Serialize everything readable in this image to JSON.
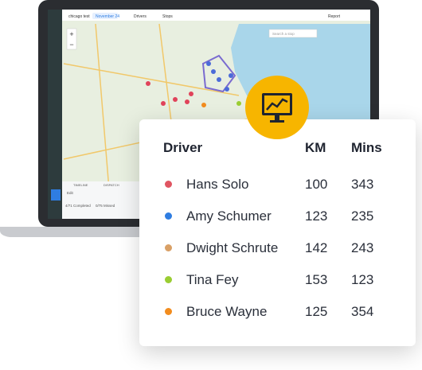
{
  "app": {
    "account": "chicago test",
    "date": "November 24",
    "drivers": "Drivers",
    "stops": "Stops",
    "report": "Report",
    "search": "Search a stop",
    "tabs": [
      "TIMELINE",
      "DISPATCH"
    ],
    "edit": "Edit",
    "status": [
      "4/71 Completed",
      "0/75 Missed"
    ]
  },
  "table": {
    "headers": [
      "Driver",
      "KM",
      "Mins"
    ],
    "rows": [
      {
        "name": "Hans Solo",
        "km": 100,
        "mins": 343,
        "color": "#e05562"
      },
      {
        "name": "Amy Schumer",
        "km": 123,
        "mins": 235,
        "color": "#2f7de1"
      },
      {
        "name": "Dwight Schrute",
        "km": 142,
        "mins": 243,
        "color": "#d9a066"
      },
      {
        "name": "Tina Fey",
        "km": 153,
        "mins": 123,
        "color": "#9acd32"
      },
      {
        "name": "Bruce Wayne",
        "km": 125,
        "mins": 354,
        "color": "#f28c1e"
      }
    ]
  }
}
